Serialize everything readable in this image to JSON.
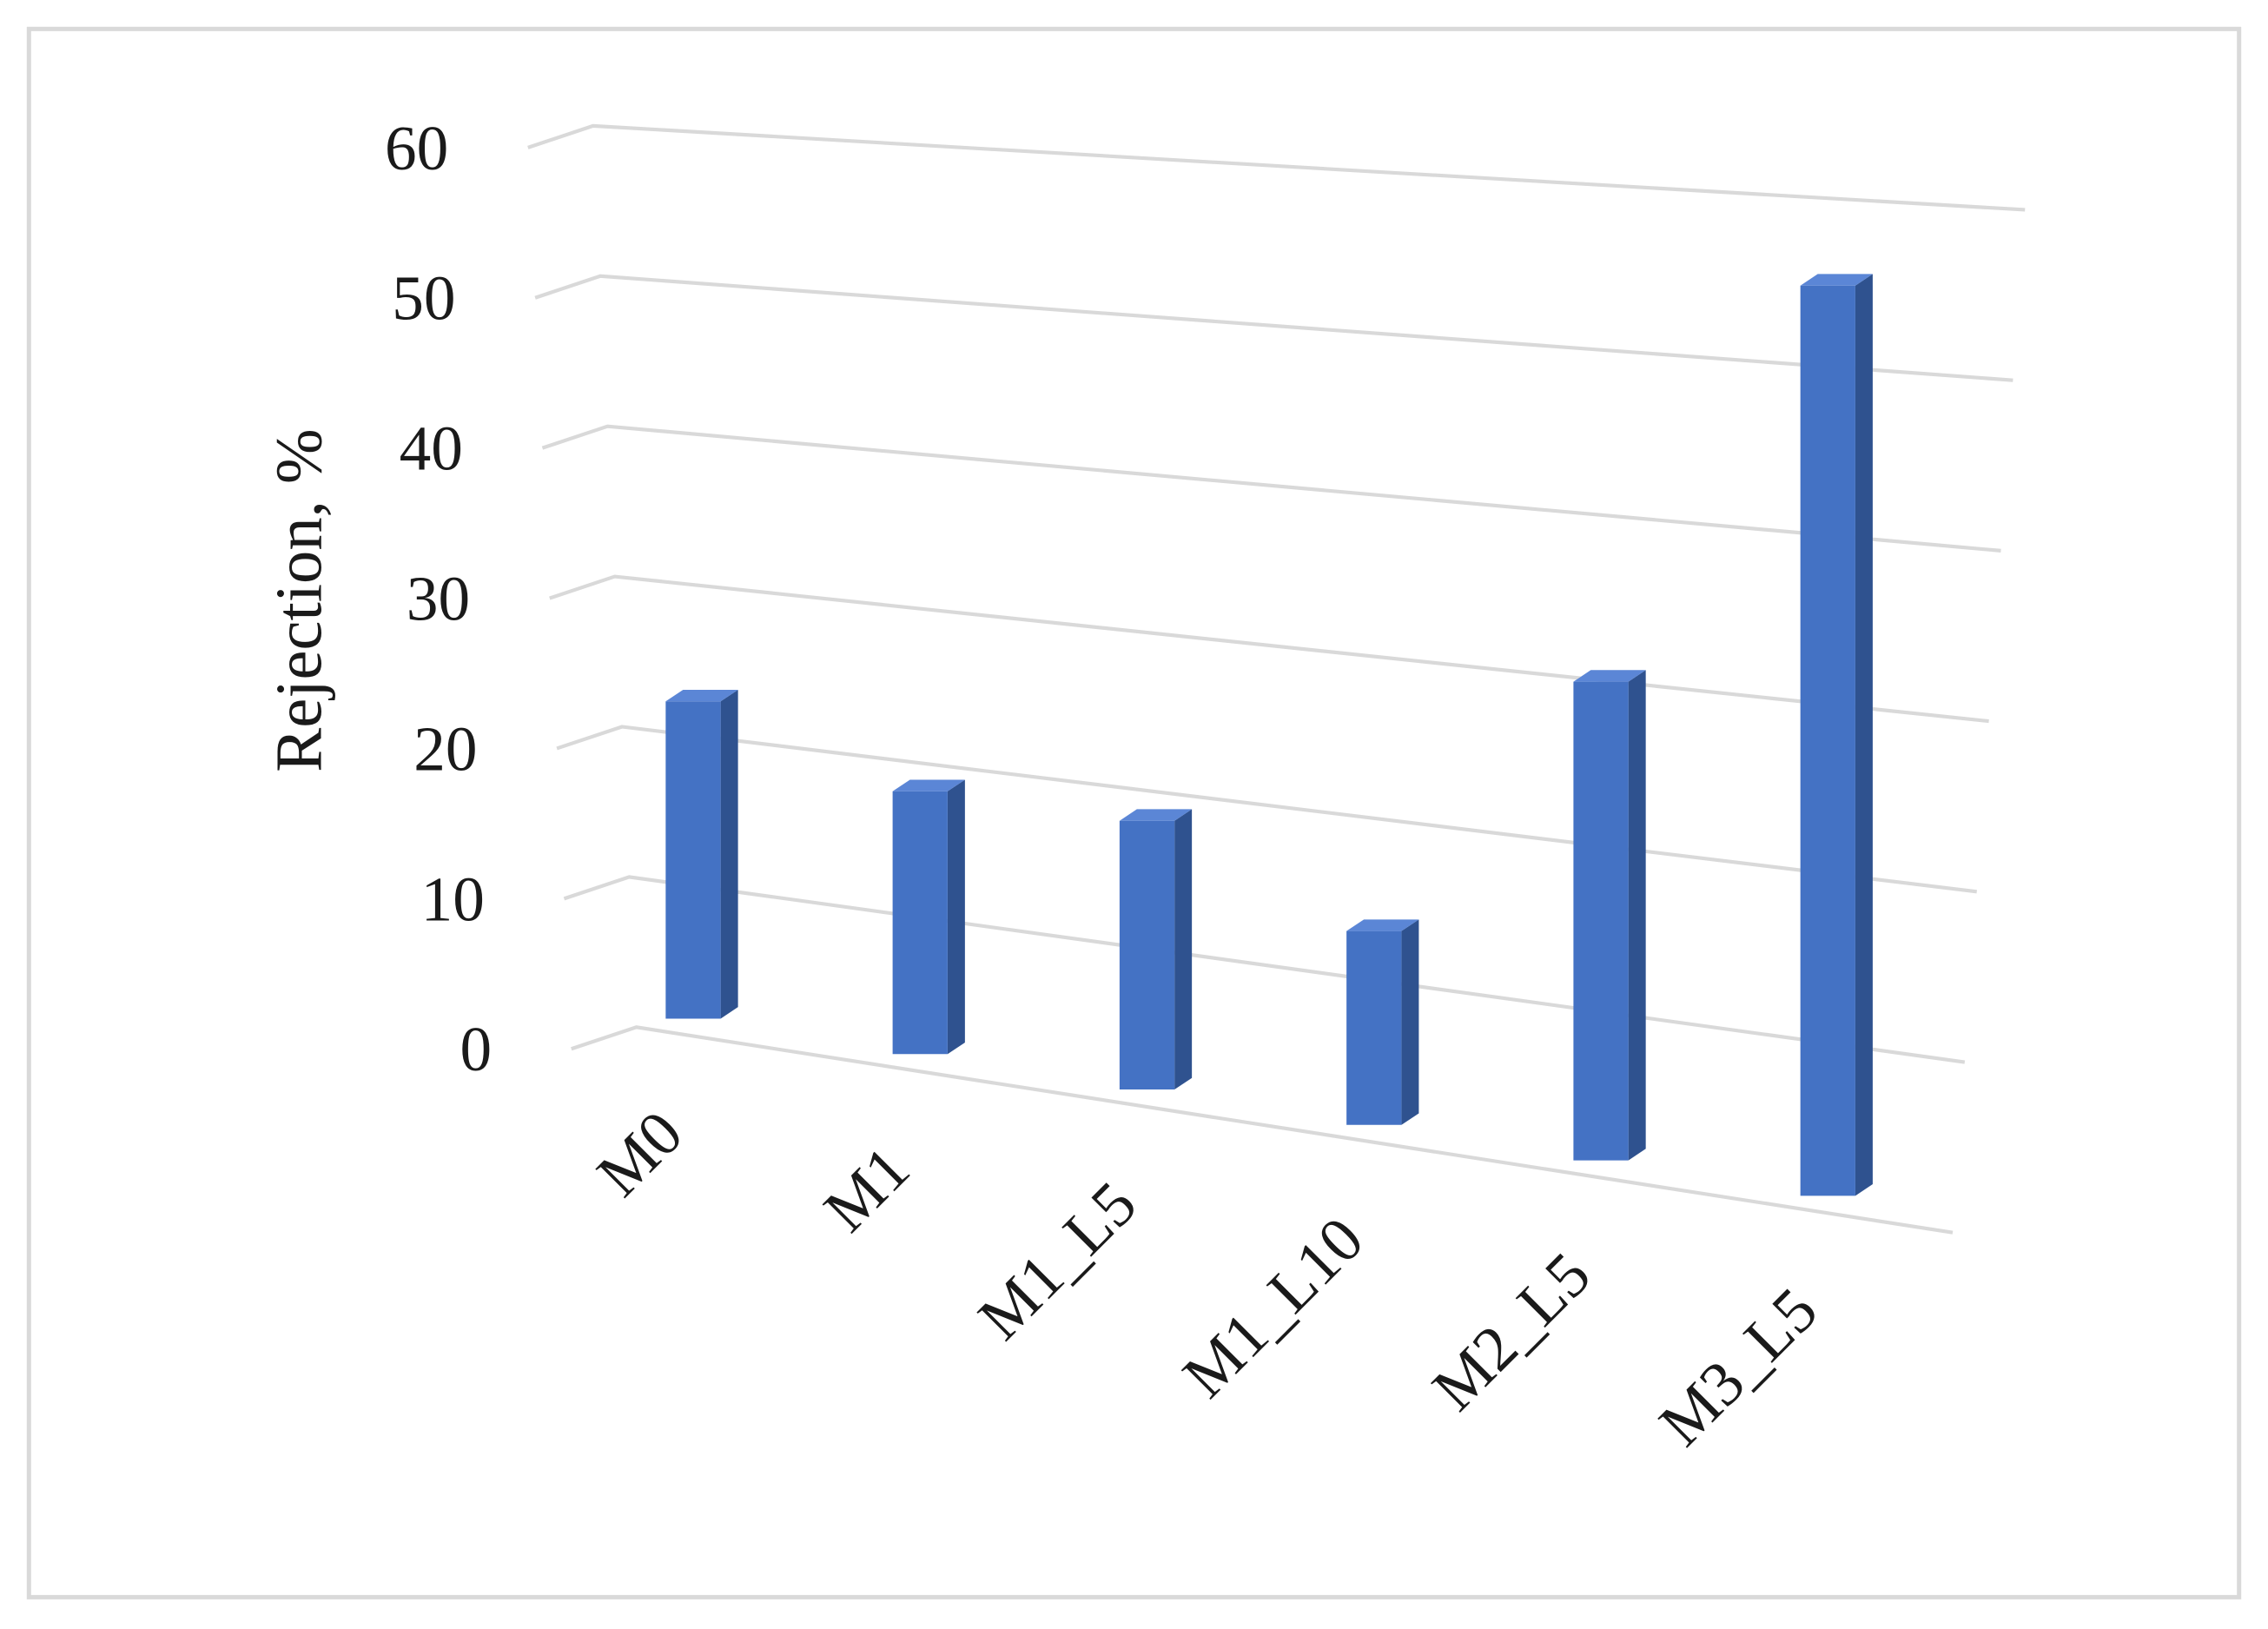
{
  "chart_data": {
    "type": "bar3d",
    "y_label": "Rejection, %",
    "categories": [
      "M0",
      "M1",
      "M1_L5",
      "M1_L10",
      "M2_L5",
      "M3_L5"
    ],
    "values": [
      21,
      17,
      17,
      12,
      29,
      54
    ],
    "color": "#4472c4",
    "ylim": [
      0,
      60
    ],
    "yticks": [
      0,
      10,
      20,
      30,
      40,
      50,
      60
    ],
    "grid": true
  }
}
